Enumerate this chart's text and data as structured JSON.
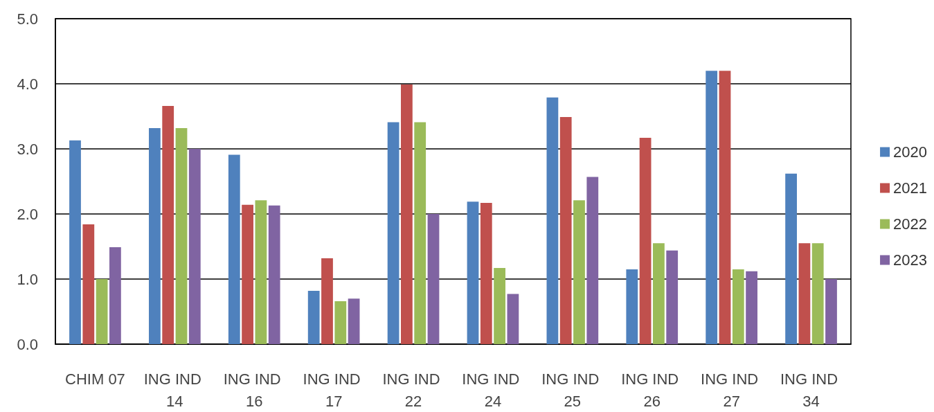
{
  "chart_data": {
    "type": "bar",
    "categories": [
      "CHIM 07",
      "ING IND 14",
      "ING IND 16",
      "ING IND 17",
      "ING IND 22",
      "ING IND 24",
      "ING IND 25",
      "ING IND 26",
      "ING IND 27",
      "ING IND 34"
    ],
    "series": [
      {
        "name": "2020",
        "color": "#4f81bd",
        "values": [
          3.13,
          3.32,
          2.91,
          0.82,
          3.41,
          2.19,
          3.79,
          1.15,
          4.2,
          2.62
        ]
      },
      {
        "name": "2021",
        "color": "#c0504d",
        "values": [
          1.84,
          3.66,
          2.14,
          1.32,
          3.99,
          2.17,
          3.49,
          3.17,
          4.2,
          1.55
        ]
      },
      {
        "name": "2022",
        "color": "#9bbb59",
        "values": [
          1.0,
          3.32,
          2.21,
          0.66,
          3.41,
          1.17,
          2.21,
          1.55,
          1.15,
          1.55
        ]
      },
      {
        "name": "2023",
        "color": "#8064a2",
        "values": [
          1.49,
          3.0,
          2.13,
          0.7,
          2.0,
          0.77,
          2.57,
          1.44,
          1.12,
          1.0
        ]
      }
    ],
    "ylim": [
      0,
      5
    ],
    "yticks": [
      {
        "value": 0,
        "label": "0.0"
      },
      {
        "value": 1,
        "label": "1.0"
      },
      {
        "value": 2,
        "label": "2.0"
      },
      {
        "value": 3,
        "label": "3.0"
      },
      {
        "value": 4,
        "label": "4.0"
      },
      {
        "value": 5,
        "label": "5.0"
      }
    ],
    "grid": "y",
    "legend": "right"
  }
}
